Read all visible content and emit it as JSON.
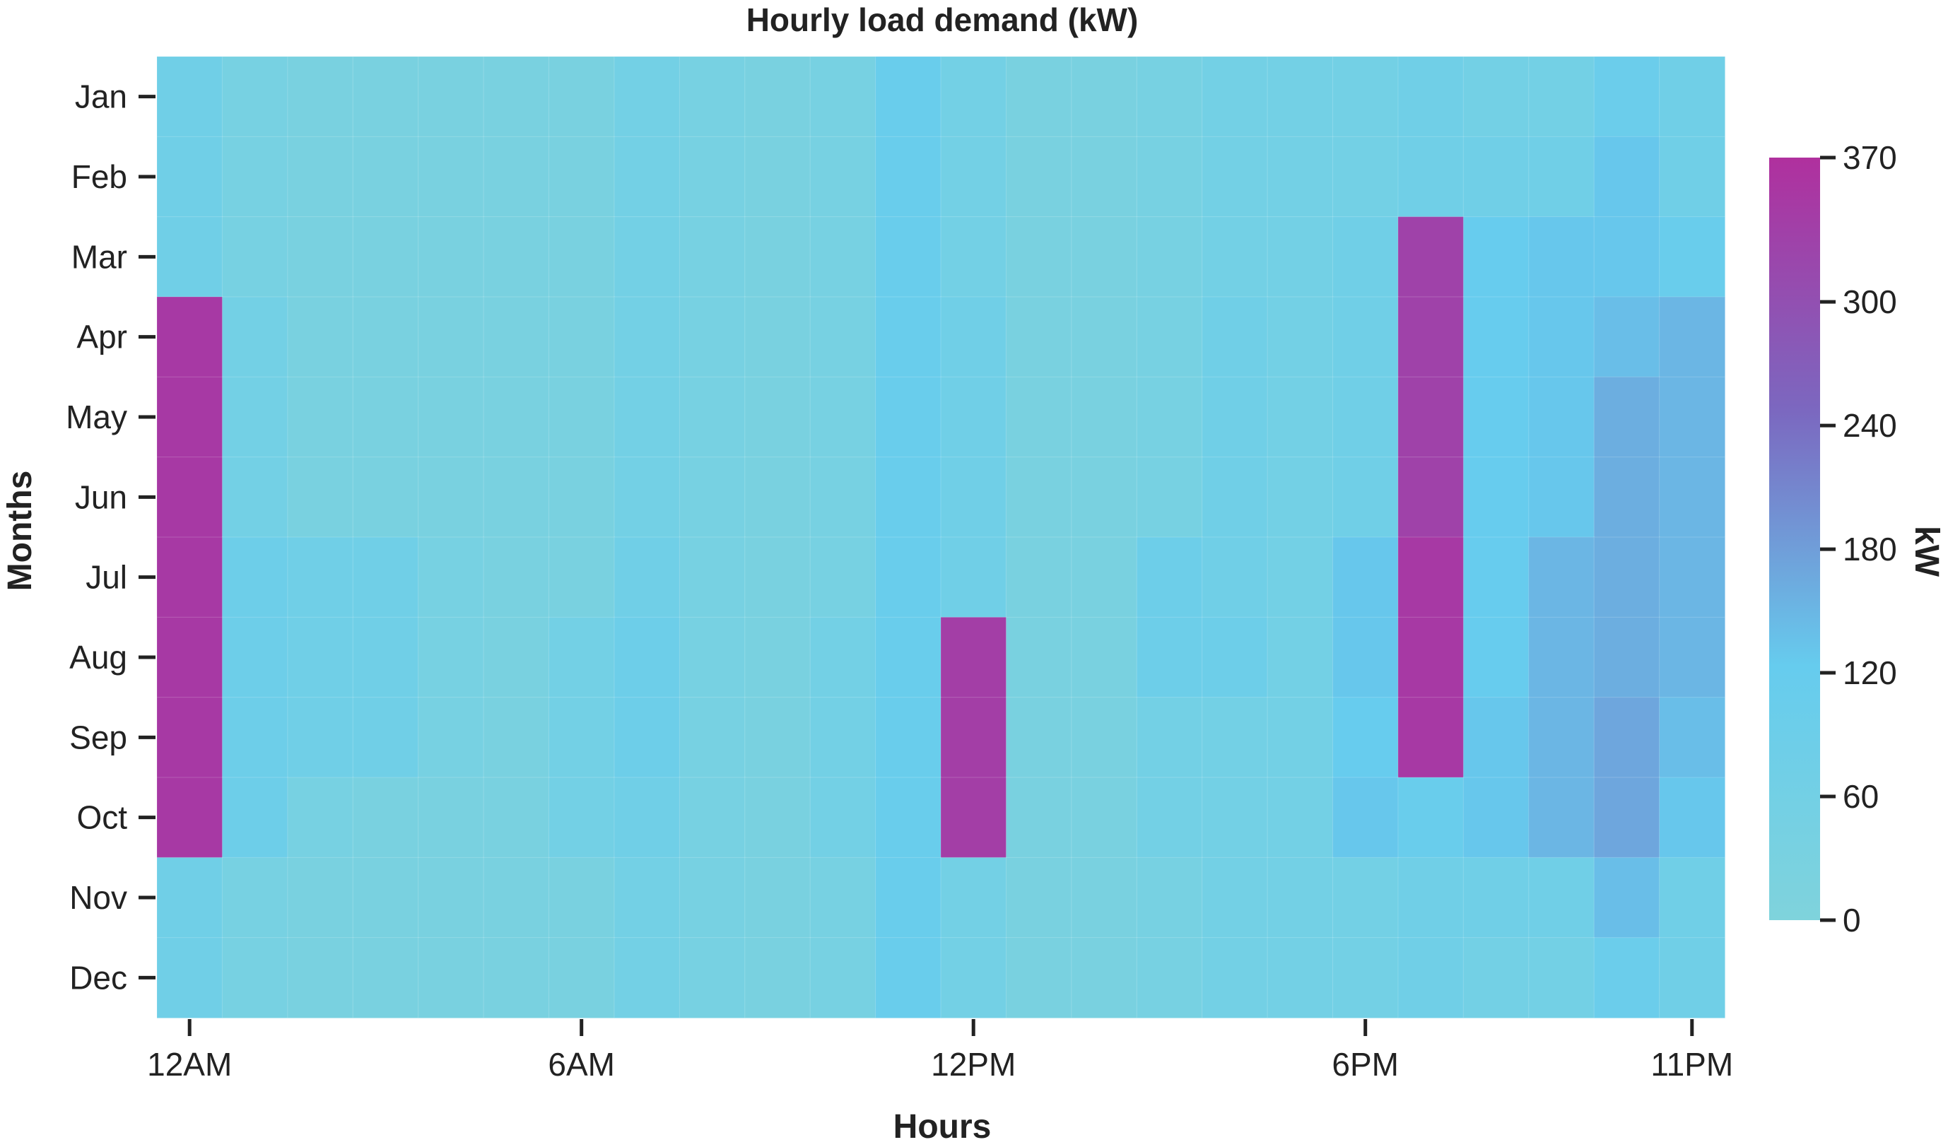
{
  "chart_data": {
    "type": "heatmap",
    "title": "Hourly load demand (kW)",
    "xlabel": "Hours",
    "ylabel": "Months",
    "x_tick_labels": [
      {
        "label": "12AM",
        "hour": 0
      },
      {
        "label": "6AM",
        "hour": 6
      },
      {
        "label": "12PM",
        "hour": 12
      },
      {
        "label": "6PM",
        "hour": 18
      },
      {
        "label": "11PM",
        "hour": 23
      }
    ],
    "hours": [
      0,
      1,
      2,
      3,
      4,
      5,
      6,
      7,
      8,
      9,
      10,
      11,
      12,
      13,
      14,
      15,
      16,
      17,
      18,
      19,
      20,
      21,
      22,
      23
    ],
    "months": [
      "Jan",
      "Feb",
      "Mar",
      "Apr",
      "May",
      "Jun",
      "Jul",
      "Aug",
      "Sep",
      "Oct",
      "Nov",
      "Dec"
    ],
    "values": [
      [
        75,
        40,
        30,
        30,
        30,
        30,
        30,
        60,
        40,
        30,
        40,
        110,
        60,
        30,
        30,
        40,
        60,
        60,
        60,
        75,
        60,
        60,
        100,
        75
      ],
      [
        75,
        40,
        30,
        30,
        30,
        30,
        30,
        60,
        40,
        30,
        40,
        110,
        60,
        30,
        30,
        40,
        60,
        60,
        60,
        75,
        75,
        75,
        130,
        75
      ],
      [
        75,
        40,
        30,
        30,
        30,
        30,
        30,
        60,
        40,
        30,
        40,
        110,
        60,
        30,
        30,
        40,
        60,
        60,
        75,
        330,
        120,
        130,
        130,
        110
      ],
      [
        350,
        60,
        30,
        30,
        30,
        30,
        30,
        60,
        40,
        30,
        40,
        110,
        75,
        30,
        30,
        40,
        75,
        60,
        75,
        330,
        120,
        130,
        140,
        150
      ],
      [
        350,
        60,
        30,
        30,
        30,
        30,
        30,
        60,
        40,
        30,
        40,
        110,
        75,
        30,
        30,
        40,
        75,
        60,
        75,
        330,
        120,
        130,
        160,
        150
      ],
      [
        350,
        60,
        30,
        30,
        30,
        30,
        30,
        60,
        40,
        30,
        40,
        110,
        75,
        30,
        30,
        40,
        75,
        60,
        75,
        330,
        120,
        130,
        160,
        150
      ],
      [
        350,
        90,
        75,
        75,
        40,
        30,
        30,
        75,
        40,
        30,
        40,
        110,
        75,
        30,
        30,
        90,
        75,
        60,
        130,
        350,
        120,
        150,
        160,
        150
      ],
      [
        350,
        90,
        75,
        75,
        40,
        30,
        60,
        90,
        40,
        30,
        60,
        110,
        340,
        30,
        30,
        90,
        90,
        60,
        130,
        350,
        120,
        150,
        160,
        150
      ],
      [
        350,
        90,
        75,
        75,
        40,
        30,
        60,
        90,
        40,
        30,
        60,
        110,
        340,
        30,
        30,
        60,
        60,
        60,
        120,
        350,
        130,
        150,
        170,
        140
      ],
      [
        350,
        90,
        40,
        30,
        30,
        30,
        60,
        75,
        40,
        30,
        60,
        110,
        340,
        30,
        30,
        60,
        60,
        60,
        130,
        110,
        130,
        150,
        170,
        130
      ],
      [
        75,
        40,
        30,
        30,
        30,
        30,
        30,
        60,
        40,
        30,
        40,
        110,
        60,
        30,
        30,
        40,
        60,
        60,
        60,
        75,
        75,
        75,
        140,
        75
      ],
      [
        75,
        40,
        30,
        30,
        30,
        30,
        30,
        60,
        40,
        30,
        40,
        110,
        60,
        30,
        30,
        40,
        60,
        60,
        60,
        75,
        60,
        60,
        100,
        75
      ]
    ],
    "colorbar": {
      "label": "kW",
      "min": 0,
      "max": 370,
      "ticks": [
        0,
        60,
        120,
        180,
        240,
        300,
        370
      ],
      "colors": [
        "#7fd3dc",
        "#66ccee",
        "#7b68c0",
        "#b0309e"
      ]
    },
    "grid": false,
    "legend": "right"
  }
}
